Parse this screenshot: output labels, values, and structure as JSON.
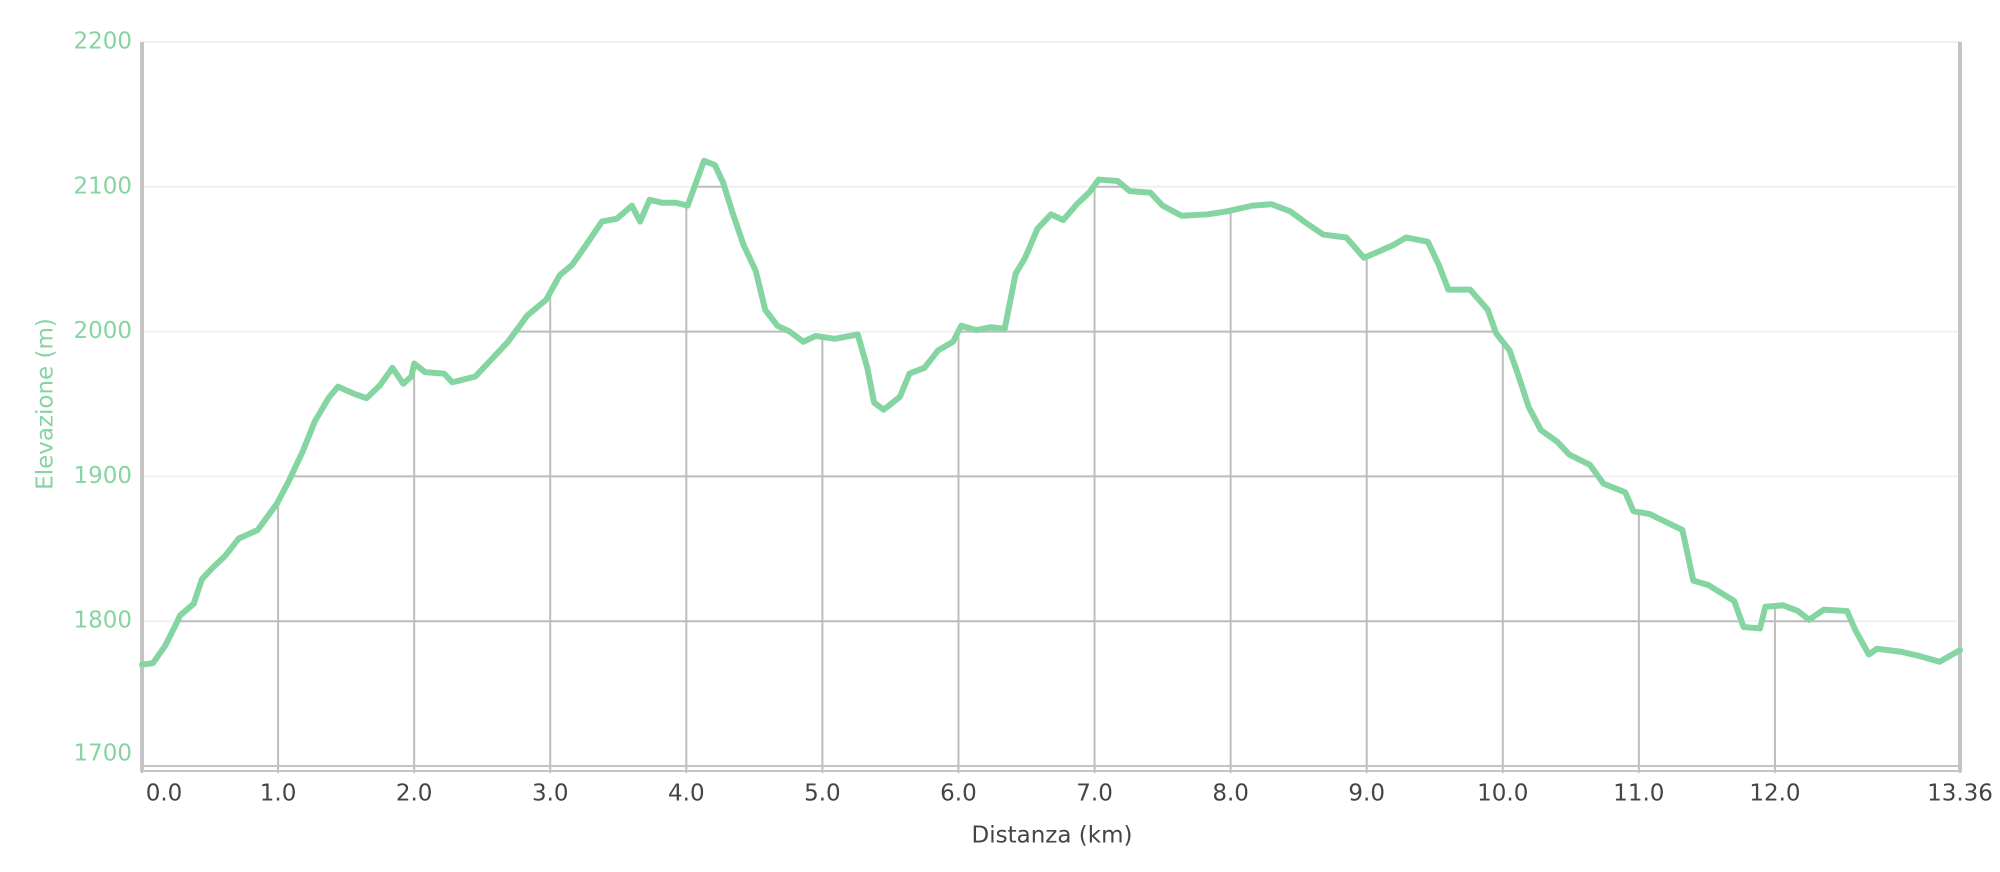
{
  "chart_data": {
    "type": "line",
    "x_label": "Distanza (km)",
    "y_label": "Elevazione (m)",
    "color": "#84d5a1",
    "grid": true,
    "xlim": [
      0,
      13.36
    ],
    "ylim": [
      1700,
      2200
    ],
    "yticks": [
      1700,
      1800,
      1900,
      2000,
      2100,
      2200
    ],
    "xticks": [
      {
        "value": 0,
        "label": "0.0"
      },
      {
        "value": 1,
        "label": "1.0"
      },
      {
        "value": 2,
        "label": "2.0"
      },
      {
        "value": 3,
        "label": "3.0"
      },
      {
        "value": 4,
        "label": "4.0"
      },
      {
        "value": 5,
        "label": "5.0"
      },
      {
        "value": 6,
        "label": "6.0"
      },
      {
        "value": 7,
        "label": "7.0"
      },
      {
        "value": 8,
        "label": "8.0"
      },
      {
        "value": 9,
        "label": "9.0"
      },
      {
        "value": 10,
        "label": "10.0"
      },
      {
        "value": 11,
        "label": "11.0"
      },
      {
        "value": 12,
        "label": "12.0"
      },
      13.36
    ],
    "x": [
      0.0,
      0.08,
      0.17,
      0.24,
      0.28,
      0.38,
      0.44,
      0.52,
      0.61,
      0.71,
      0.85,
      0.99,
      1.08,
      1.18,
      1.27,
      1.37,
      1.44,
      1.56,
      1.65,
      1.75,
      1.84,
      1.92,
      1.98,
      2.0,
      2.08,
      2.22,
      2.28,
      2.45,
      2.55,
      2.69,
      2.83,
      2.97,
      3.07,
      3.16,
      3.25,
      3.38,
      3.49,
      3.6,
      3.66,
      3.73,
      3.82,
      3.92,
      4.01,
      4.06,
      4.13,
      4.21,
      4.27,
      4.34,
      4.42,
      4.51,
      4.58,
      4.67,
      4.76,
      4.86,
      4.95,
      5.09,
      5.26,
      5.33,
      5.38,
      5.45,
      5.57,
      5.64,
      5.75,
      5.85,
      5.96,
      6.02,
      6.13,
      6.23,
      6.34,
      6.42,
      6.49,
      6.58,
      6.68,
      6.77,
      6.87,
      6.96,
      7.03,
      7.17,
      7.26,
      7.41,
      7.5,
      7.64,
      7.83,
      7.97,
      8.16,
      8.3,
      8.44,
      8.54,
      8.68,
      8.85,
      8.98,
      9.08,
      9.2,
      9.29,
      9.45,
      9.53,
      9.6,
      9.76,
      9.89,
      9.95,
      10.05,
      10.11,
      10.19,
      10.28,
      10.4,
      10.49,
      10.64,
      10.74,
      10.9,
      10.96,
      11.08,
      11.21,
      11.32,
      11.4,
      11.51,
      11.7,
      11.77,
      11.89,
      11.93,
      12.06,
      12.17,
      12.25,
      12.36,
      12.53,
      12.59,
      12.69,
      12.75,
      12.92,
      13.06,
      13.21,
      13.36
    ],
    "values": [
      1770,
      1771,
      1783,
      1796,
      1804,
      1812,
      1829,
      1837,
      1845,
      1857,
      1863,
      1881,
      1897,
      1917,
      1938,
      1954,
      1962,
      1957,
      1954,
      1963,
      1975,
      1964,
      1969,
      1978,
      1972,
      1971,
      1965,
      1969,
      1979,
      1993,
      2011,
      2022,
      2039,
      2046,
      2058,
      2076,
      2078,
      2087,
      2076,
      2091,
      2089,
      2089,
      2087,
      2100,
      2118,
      2115,
      2103,
      2082,
      2060,
      2042,
      2015,
      2004,
      2000,
      1993,
      1997,
      1995,
      1998,
      1975,
      1951,
      1946,
      1955,
      1971,
      1975,
      1987,
      1993,
      2004,
      2001,
      2003,
      2002,
      2040,
      2051,
      2071,
      2081,
      2077,
      2088,
      2096,
      2105,
      2104,
      2097,
      2096,
      2087,
      2080,
      2081,
      2083,
      2087,
      2088,
      2083,
      2076,
      2067,
      2065,
      2051,
      2055,
      2060,
      2065,
      2062,
      2046,
      2029,
      2029,
      2015,
      1999,
      1987,
      1971,
      1948,
      1932,
      1924,
      1915,
      1908,
      1895,
      1889,
      1876,
      1874,
      1868,
      1863,
      1828,
      1825,
      1814,
      1796,
      1795,
      1810,
      1811,
      1807,
      1801,
      1808,
      1807,
      1794,
      1777,
      1781,
      1779,
      1776,
      1772,
      1780
    ]
  }
}
